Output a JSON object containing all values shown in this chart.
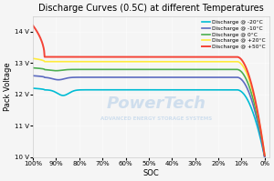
{
  "title": "Discharge Curves (0.5C) at different Temperatures",
  "xlabel": "SOC",
  "ylabel": "Pack Voltage",
  "ylim": [
    10.0,
    14.5
  ],
  "yticks": [
    10,
    11,
    12,
    13,
    14
  ],
  "ytick_labels": [
    "10 V",
    "11 V",
    "12 V",
    "13 V",
    "14 V"
  ],
  "xtick_labels": [
    "100%",
    "90%",
    "80%",
    "70%",
    "60%",
    "50%",
    "40%",
    "30%",
    "20%",
    "10%",
    "0%"
  ],
  "background_color": "#f5f5f5",
  "legend_entries": [
    "Discharge @ -20°C",
    "Discharge @ -10°C",
    "Discharge @ 0°C",
    "Discharge @ +20°C",
    "Discharge @ +50°C"
  ],
  "line_colors": [
    "#00bcd4",
    "#5c6bc0",
    "#4caf50",
    "#ffeb3b",
    "#f44336"
  ],
  "watermark_text1": "PowerTech",
  "watermark_text2": "ADVANCED ENERGY STORAGE SYSTEMS"
}
